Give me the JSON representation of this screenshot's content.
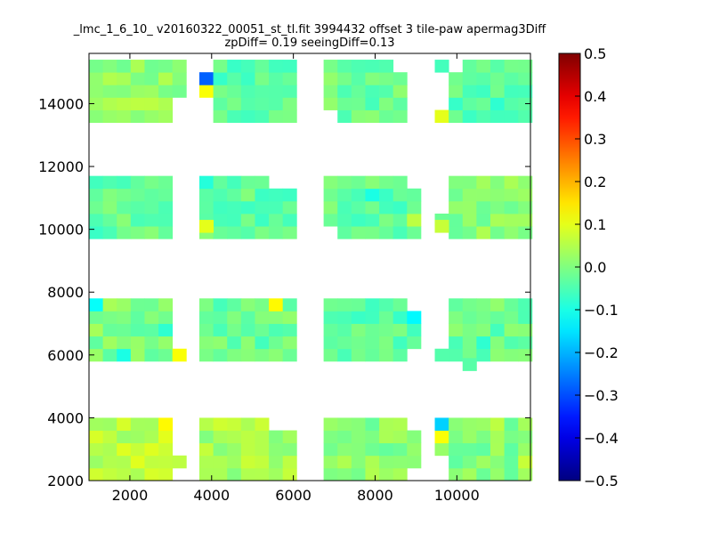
{
  "chart_data": {
    "type": "heatmap",
    "title": "_lmc_1_6_10_ v20160322_00051_st_tl.fit 3994432 offset 3 tile-paw apermag3Diff",
    "subtitle": "zpDiff= 0.19 seeingDiff=0.13",
    "xlabel": "",
    "ylabel": "",
    "xlim": [
      1000,
      11800
    ],
    "ylim": [
      2000,
      15600
    ],
    "x_ticks": [
      "2000",
      "4000",
      "6000",
      "8000",
      "10000"
    ],
    "y_ticks": [
      "2000",
      "4000",
      "6000",
      "8000",
      "10000",
      "12000",
      "14000"
    ],
    "colormap": "jet",
    "color_range": [
      -0.5,
      0.5
    ],
    "colorbar_ticks": [
      "0.5",
      "0.4",
      "0.3",
      "0.2",
      "0.1",
      "0.0",
      "−0.1",
      "−0.2",
      "−0.3",
      "−0.4",
      "−0.5"
    ],
    "grid": false,
    "cell_size": [
      340,
      400
    ],
    "x_columns": [
      1000,
      1340,
      1680,
      2020,
      2360,
      2700,
      3040,
      3700,
      4040,
      4380,
      4720,
      5060,
      5400,
      5740,
      6740,
      7080,
      7420,
      7760,
      8100,
      8440,
      8780,
      9460,
      9800,
      10140,
      10480,
      10820,
      11160,
      11500
    ],
    "column_groups": [
      [
        0,
        6
      ],
      [
        7,
        13
      ],
      [
        14,
        20
      ],
      [
        21,
        27
      ]
    ],
    "y_rows": [
      2000,
      2400,
      2800,
      3200,
      3600,
      5800,
      6200,
      6600,
      7000,
      7400,
      9700,
      10100,
      10500,
      10900,
      11300,
      13400,
      13800,
      14200,
      14600,
      15000
    ],
    "row_groups": [
      [
        0,
        4
      ],
      [
        5,
        9
      ],
      [
        10,
        14
      ],
      [
        15,
        19
      ]
    ],
    "base_values": [
      [
        0.06,
        0.04,
        0.01,
        0.0
      ],
      [
        0.0,
        -0.02,
        -0.04,
        -0.02
      ],
      [
        -0.03,
        -0.03,
        -0.03,
        0.01
      ],
      [
        0.02,
        -0.04,
        -0.02,
        -0.04
      ]
    ],
    "special_cells": [
      {
        "x": 3700,
        "y": 14600,
        "value": -0.28
      },
      {
        "x": 3700,
        "y": 14200,
        "value": 0.12
      },
      {
        "x": 9460,
        "y": 3600,
        "value": -0.17
      },
      {
        "x": 9460,
        "y": 3200,
        "value": 0.12
      },
      {
        "x": 2700,
        "y": 3600,
        "value": 0.13
      },
      {
        "x": 1000,
        "y": 7400,
        "value": -0.12
      },
      {
        "x": 5400,
        "y": 7400,
        "value": 0.13
      },
      {
        "x": 8780,
        "y": 7000,
        "value": -0.13
      },
      {
        "x": 3040,
        "y": 5800,
        "value": 0.12
      },
      {
        "x": 3700,
        "y": 9900,
        "value": 0.1
      },
      {
        "x": 3700,
        "y": 11300,
        "value": -0.09
      },
      {
        "x": 7760,
        "y": 10900,
        "value": -0.1
      },
      {
        "x": 10140,
        "y": 5500,
        "value": -0.04
      },
      {
        "x": 9460,
        "y": 13400,
        "value": 0.1
      },
      {
        "x": 10480,
        "y": 6200,
        "value": -0.08
      },
      {
        "x": 1680,
        "y": 5800,
        "value": -0.1
      },
      {
        "x": 2700,
        "y": 6600,
        "value": -0.08
      },
      {
        "x": 5060,
        "y": 6200,
        "value": -0.06
      },
      {
        "x": 3040,
        "y": 2400,
        "value": 0.06
      },
      {
        "x": 11500,
        "y": 2400,
        "value": 0.07
      },
      {
        "x": 10820,
        "y": 3600,
        "value": 0.06
      },
      {
        "x": 8780,
        "y": 10100,
        "value": 0.06
      },
      {
        "x": 9460,
        "y": 9900,
        "value": 0.07
      }
    ],
    "missing_cells": [
      {
        "x": 3040,
        "y": 2000
      },
      {
        "x": 3040,
        "y": 2800
      },
      {
        "x": 3040,
        "y": 3200
      },
      {
        "x": 3040,
        "y": 3600
      },
      {
        "x": 5740,
        "y": 3600
      },
      {
        "x": 5400,
        "y": 3600
      },
      {
        "x": 8780,
        "y": 3600
      },
      {
        "x": 8780,
        "y": 2000
      },
      {
        "x": 9460,
        "y": 2000
      },
      {
        "x": 9460,
        "y": 2400
      },
      {
        "x": 3040,
        "y": 6200
      },
      {
        "x": 3040,
        "y": 6600
      },
      {
        "x": 3040,
        "y": 7000
      },
      {
        "x": 3040,
        "y": 7400
      },
      {
        "x": 8780,
        "y": 7400
      },
      {
        "x": 8780,
        "y": 5800
      },
      {
        "x": 9460,
        "y": 6200
      },
      {
        "x": 9460,
        "y": 6600
      },
      {
        "x": 9460,
        "y": 7000
      },
      {
        "x": 9460,
        "y": 7400
      },
      {
        "x": 3040,
        "y": 9700
      },
      {
        "x": 3040,
        "y": 10100
      },
      {
        "x": 3040,
        "y": 10500
      },
      {
        "x": 3040,
        "y": 10900
      },
      {
        "x": 3040,
        "y": 11300
      },
      {
        "x": 5400,
        "y": 11300
      },
      {
        "x": 6740,
        "y": 9700
      },
      {
        "x": 8780,
        "y": 11300
      },
      {
        "x": 9460,
        "y": 11300
      },
      {
        "x": 9460,
        "y": 10900
      },
      {
        "x": 9460,
        "y": 10500
      },
      {
        "x": 9460,
        "y": 9700
      },
      {
        "x": 3040,
        "y": 13400
      },
      {
        "x": 3040,
        "y": 13800
      },
      {
        "x": 3700,
        "y": 13400
      },
      {
        "x": 3700,
        "y": 13800
      },
      {
        "x": 6740,
        "y": 13400
      },
      {
        "x": 8440,
        "y": 15000
      },
      {
        "x": 8780,
        "y": 15000
      },
      {
        "x": 8780,
        "y": 13800
      },
      {
        "x": 8780,
        "y": 13400
      },
      {
        "x": 8780,
        "y": 14200
      },
      {
        "x": 8780,
        "y": 14600
      },
      {
        "x": 9800,
        "y": 15000
      },
      {
        "x": 9460,
        "y": 14600
      },
      {
        "x": 9460,
        "y": 14200
      },
      {
        "x": 9460,
        "y": 13800
      },
      {
        "x": 3700,
        "y": 15000
      },
      {
        "x": 5740,
        "y": 11300
      }
    ]
  }
}
